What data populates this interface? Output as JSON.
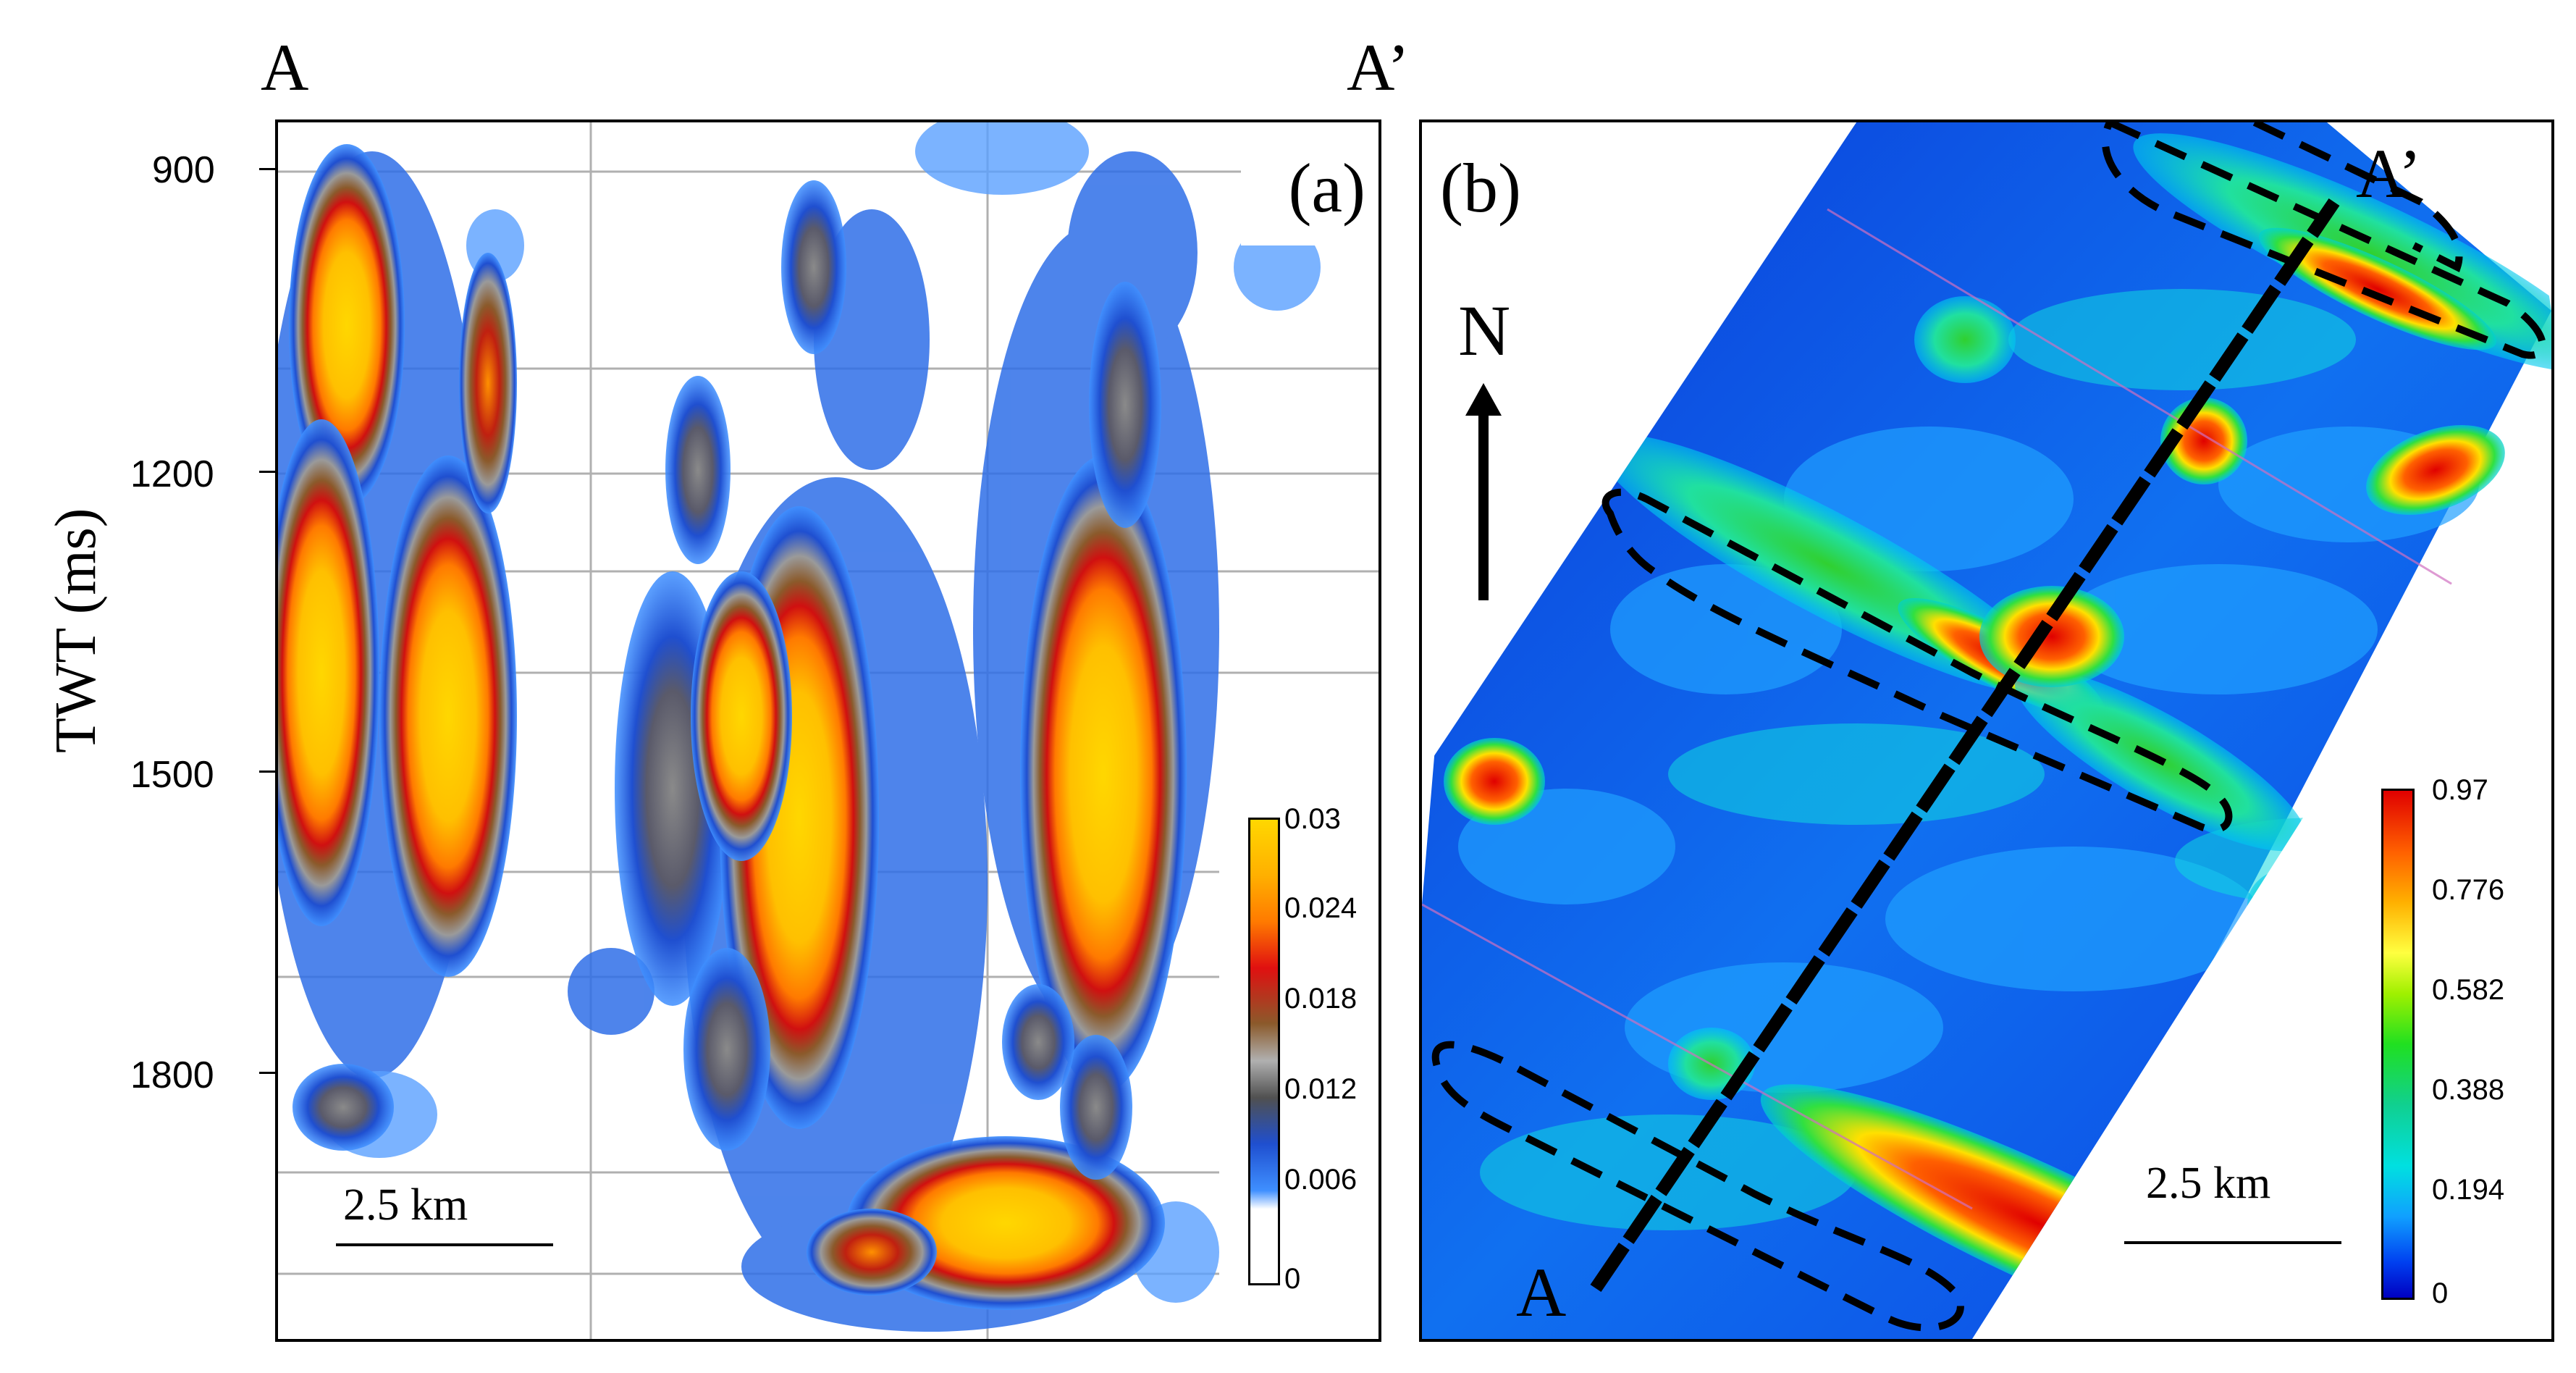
{
  "profile_labels": {
    "start": "A",
    "end": "A’"
  },
  "panel_a": {
    "label": "(a)",
    "y_axis_title": "TWT (ms)",
    "y_ticks": [
      "900",
      "1200",
      "1500",
      "1800"
    ],
    "scale_bar": "2.5 km",
    "colorbar_ticks": [
      "0.03",
      "0.024",
      "0.018",
      "0.012",
      "0.006",
      "0"
    ],
    "colorbar_colors": [
      "#ffd700",
      "#ff8c00",
      "#e01010",
      "#8b5a2b",
      "#a0a0a0",
      "#404040",
      "#1f4fd0",
      "#3f8fff",
      "#ffffff"
    ]
  },
  "panel_b": {
    "label": "(b)",
    "north_label": "N",
    "map_labels": {
      "start": "A",
      "end": "A’"
    },
    "scale_bar": "2.5 km",
    "colorbar_ticks": [
      "0.97",
      "0.776",
      "0.582",
      "0.388",
      "0.194",
      "0"
    ],
    "colorbar_colors": [
      "#e00000",
      "#ff8000",
      "#ffff00",
      "#40e040",
      "#00e0e0",
      "#0060ff",
      "#0000c0"
    ]
  }
}
